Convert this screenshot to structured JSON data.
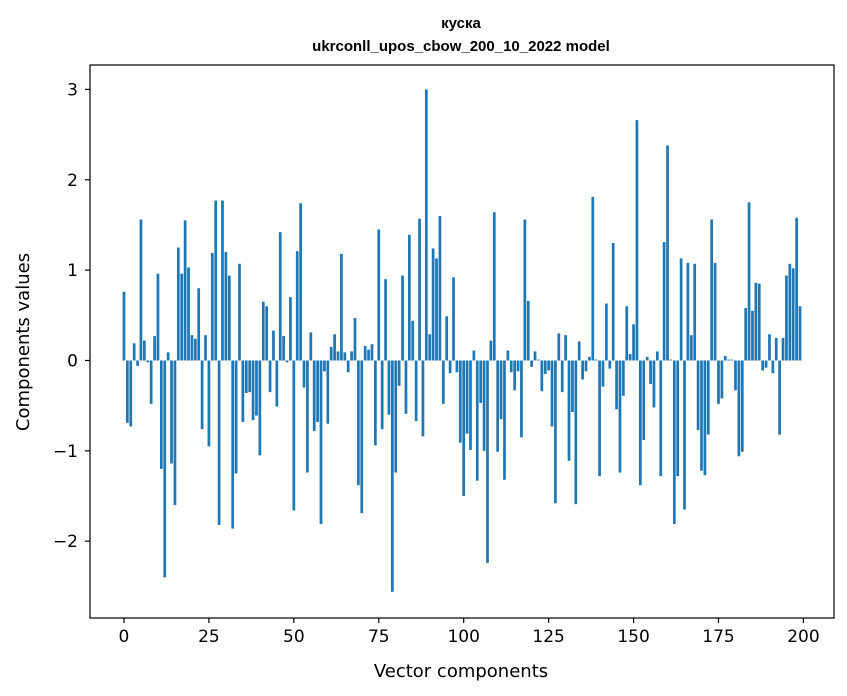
{
  "chart_data": {
    "type": "bar",
    "title": "куска",
    "subtitle": "ukrconll_upos_cbow_200_10_2022 model",
    "xlabel": "Vector components",
    "ylabel": "Components values",
    "xlim": [
      -10,
      209
    ],
    "ylim": [
      -2.85,
      3.27
    ],
    "xticks": [
      0,
      25,
      50,
      75,
      100,
      125,
      150,
      175,
      200
    ],
    "xtick_labels": [
      "0",
      "25",
      "50",
      "75",
      "100",
      "125",
      "150",
      "175",
      "200"
    ],
    "yticks": [
      -2,
      -1,
      0,
      1,
      2,
      3
    ],
    "ytick_labels": [
      "−2",
      "−1",
      "0",
      "1",
      "2",
      "3"
    ],
    "grid": false,
    "bar_color": "#1f77b4",
    "values": [
      0.76,
      -0.69,
      -0.73,
      0.19,
      -0.06,
      1.56,
      0.22,
      -0.02,
      -0.48,
      0.27,
      0.96,
      -1.2,
      -2.4,
      0.09,
      -1.14,
      -1.6,
      1.25,
      0.96,
      1.55,
      1.03,
      0.28,
      0.24,
      0.8,
      -0.76,
      0.28,
      -0.95,
      1.19,
      1.77,
      -1.82,
      1.77,
      1.2,
      0.94,
      -1.86,
      -1.25,
      1.07,
      -0.68,
      -0.36,
      -0.35,
      -0.66,
      -0.61,
      -1.05,
      0.65,
      0.6,
      -0.35,
      0.33,
      -0.51,
      1.42,
      0.27,
      -0.02,
      0.7,
      -1.66,
      1.21,
      1.74,
      -0.3,
      -1.24,
      0.31,
      -0.78,
      -0.68,
      -1.81,
      -0.12,
      -0.7,
      0.15,
      0.29,
      0.1,
      1.18,
      0.09,
      -0.13,
      0.1,
      0.47,
      -1.38,
      -1.69,
      0.16,
      0.12,
      0.18,
      -0.94,
      1.45,
      -0.76,
      0.9,
      -0.6,
      -2.56,
      -1.24,
      -0.28,
      0.94,
      -0.59,
      1.39,
      0.44,
      -0.67,
      1.57,
      -0.84,
      3.0,
      0.29,
      1.24,
      1.13,
      1.6,
      -0.48,
      0.49,
      -0.14,
      0.92,
      -0.13,
      -0.91,
      -1.5,
      -0.81,
      -0.99,
      0.11,
      -1.33,
      -0.47,
      -1.0,
      -2.24,
      0.22,
      1.64,
      -1.01,
      -0.65,
      -1.32,
      0.11,
      -0.13,
      -0.33,
      -0.12,
      -0.85,
      1.56,
      0.66,
      -0.07,
      0.1,
      0.01,
      -0.34,
      -0.15,
      -0.11,
      -0.73,
      -1.58,
      0.3,
      -0.35,
      0.28,
      -1.11,
      -0.57,
      -1.59,
      0.21,
      -0.21,
      -0.12,
      0.04,
      1.81,
      0.01,
      -1.28,
      -0.29,
      0.63,
      -0.09,
      1.3,
      -0.54,
      -1.24,
      -0.39,
      0.6,
      0.07,
      0.4,
      2.66,
      -1.38,
      -0.88,
      0.04,
      -0.26,
      -0.52,
      0.1,
      -1.28,
      1.31,
      2.38,
      0.01,
      -1.81,
      -1.28,
      1.13,
      -1.65,
      1.08,
      0.28,
      1.07,
      -0.77,
      -1.22,
      -1.27,
      -0.82,
      1.56,
      1.08,
      -0.48,
      -0.42,
      0.05,
      0.01,
      0.01,
      -0.33,
      -1.06,
      -1.01,
      0.58,
      1.75,
      0.55,
      0.86,
      0.85,
      -0.11,
      -0.08,
      0.29,
      -0.14,
      0.25,
      -0.82,
      0.25,
      0.94,
      1.07,
      1.02,
      1.58,
      0.6
    ]
  }
}
